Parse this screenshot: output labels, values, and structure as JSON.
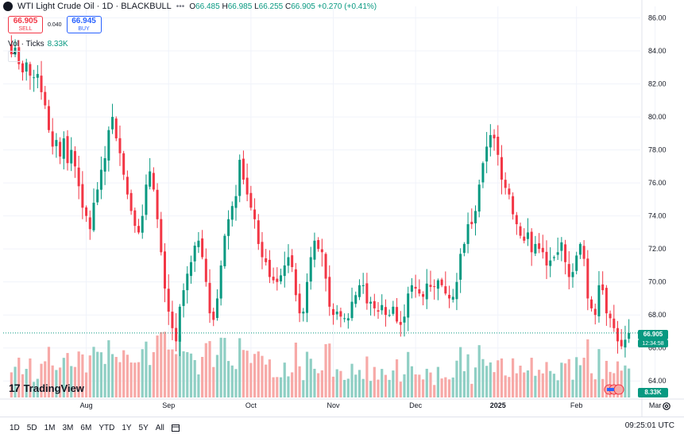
{
  "header": {
    "title": "WTI Light Crude Oil · 1D · BLACKBULL",
    "o_label": "O",
    "o": "66.485",
    "h_label": "H",
    "h": "66.985",
    "l_label": "L",
    "l": "66.255",
    "c_label": "C",
    "c": "66.905",
    "change": "+0.270 (+0.41%)"
  },
  "trade": {
    "sell_price": "66.905",
    "sell_label": "SELL",
    "spread": "0.040",
    "buy_price": "66.945",
    "buy_label": "BUY"
  },
  "volume_legend": {
    "label": "Vol · Ticks",
    "value": "8.33K"
  },
  "logo": {
    "text": "TradingView"
  },
  "price_tag": {
    "price": "66.905",
    "countdown": "12:34:58"
  },
  "volume_tag": "8.33K",
  "timeframes": [
    "1D",
    "5D",
    "1M",
    "3M",
    "6M",
    "YTD",
    "1Y",
    "5Y",
    "All"
  ],
  "clock": "09:25:01 UTC",
  "colors": {
    "up": "#089981",
    "down": "#f23645",
    "vol_up": "#8fcfc4",
    "vol_down": "#f7a9a7"
  },
  "icons": [
    "symbol-icon",
    "more-icon",
    "collapse-icon",
    "calendar-icon",
    "settings-icon",
    "flag-icons"
  ],
  "chart_data": {
    "type": "candlestick",
    "title": "WTI Light Crude Oil · 1D · BLACKBULL",
    "x_ticks": [
      "Aug",
      "Sep",
      "Oct",
      "Nov",
      "Dec",
      "2025",
      "Feb",
      "Mar"
    ],
    "x_tick_index": [
      20,
      42,
      64,
      86,
      108,
      130,
      151,
      172
    ],
    "y_ticks": [
      64.0,
      66.0,
      68.0,
      70.0,
      72.0,
      74.0,
      76.0,
      78.0,
      80.0,
      82.0,
      84.0,
      86.0
    ],
    "ylim": [
      63.0,
      86.7
    ],
    "last_price": 66.905,
    "candles_close": [
      83.8,
      84.2,
      83.2,
      82.7,
      83.3,
      82.5,
      82.4,
      82.6,
      81.5,
      80.7,
      79.2,
      78.2,
      78.6,
      77.6,
      78.7,
      77.2,
      78.0,
      77.0,
      75.8,
      74.5,
      74.0,
      73.2,
      74.8,
      75.6,
      76.8,
      77.5,
      79.2,
      80.0,
      78.7,
      77.8,
      76.5,
      75.3,
      74.3,
      73.4,
      73.0,
      74.0,
      75.9,
      76.7,
      75.6,
      73.8,
      71.8,
      69.6,
      68.2,
      67.2,
      66.4,
      68.5,
      69.5,
      70.5,
      71.2,
      72.2,
      72.5,
      71.5,
      70.0,
      68.1,
      67.7,
      69.0,
      71.0,
      72.8,
      73.8,
      74.6,
      75.2,
      77.4,
      76.2,
      75.3,
      74.5,
      73.8,
      72.3,
      71.5,
      71.2,
      70.3,
      70.1,
      70.0,
      70.4,
      71.0,
      71.5,
      70.9,
      69.2,
      68.1,
      68.2,
      70.0,
      71.5,
      72.5,
      72.0,
      71.8,
      70.2,
      68.5,
      68.0,
      68.2,
      67.9,
      67.8,
      67.8,
      68.8,
      69.2,
      69.8,
      69.8,
      68.7,
      68.8,
      68.4,
      68.2,
      68.6,
      68.0,
      68.0,
      68.5,
      67.6,
      67.4,
      67.9,
      69.3,
      69.8,
      69.6,
      69.3,
      69.1,
      69.9,
      69.7,
      69.7,
      70.1,
      69.8,
      69.3,
      69.0,
      69.1,
      70.0,
      71.7,
      72.3,
      73.5,
      73.5,
      74.3,
      75.9,
      77.2,
      78.2,
      78.9,
      78.7,
      77.7,
      76.2,
      75.7,
      75.3,
      74.1,
      73.5,
      72.8,
      72.5,
      73.0,
      71.8,
      72.3,
      72.0,
      71.8,
      71.0,
      71.3,
      71.5,
      71.8,
      72.4,
      71.2,
      70.3,
      70.6,
      71.6,
      72.3,
      71.4,
      69.0,
      68.4,
      68.0,
      69.8,
      69.5,
      68.1,
      67.8,
      67.2,
      66.4,
      66.1,
      66.5,
      66.9
    ],
    "series": [
      {
        "name": "Vol · Ticks",
        "last_value": "8.33K"
      }
    ]
  }
}
